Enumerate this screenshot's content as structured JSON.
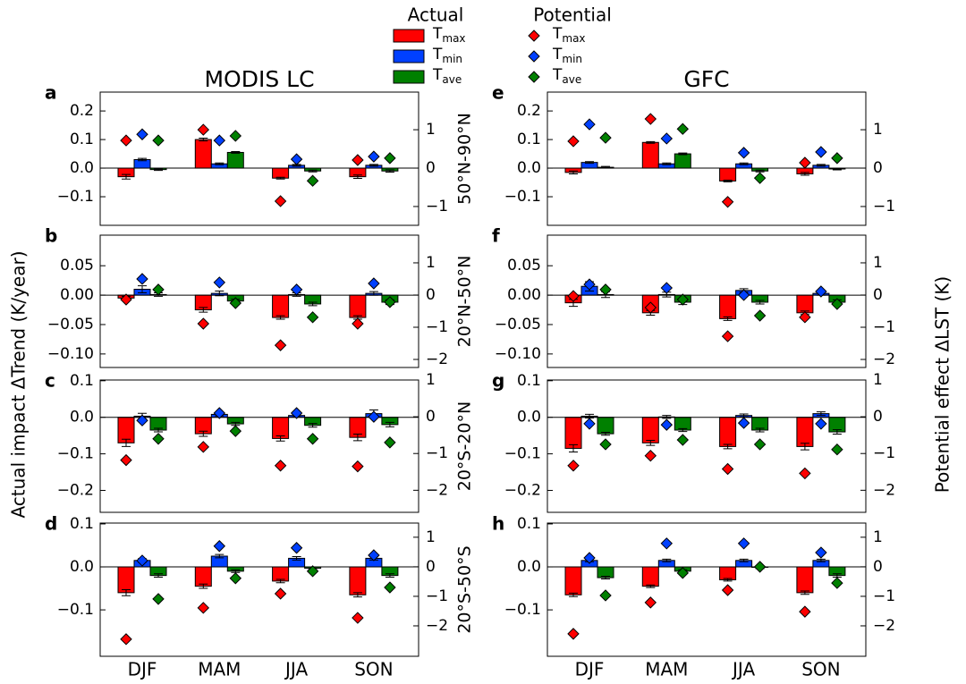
{
  "y_label": "Actual impact ΔTrend (K/year)",
  "y2_label": "Potential effect ΔLST (K)",
  "legend": {
    "actual_title": "Actual",
    "potential_title": "Potential"
  },
  "chart_data": [
    {
      "type": "bar",
      "title": "MODIS LC",
      "panel_label": "a",
      "row_label": "50°N-90°N",
      "ylim": [
        -0.2,
        0.266
      ],
      "yticks": [
        0.2,
        0.1,
        {
          "value": 0,
          "label": "0.0"
        },
        {
          "value": -0.1,
          "label": "−0.1"
        }
      ],
      "y2lim": [
        -1.49,
        1.98
      ],
      "y2ticks": [
        1,
        0,
        {
          "value": -1,
          "label": "−1"
        }
      ],
      "series": [
        {
          "name": "Tmax",
          "color": "#ff0000",
          "values": [
            -0.03,
            0.1,
            -0.035,
            -0.03
          ],
          "errors": [
            0.008,
            0.005,
            0.003,
            0.006
          ]
        },
        {
          "name": "Tmin",
          "color": "#0040ff",
          "values": [
            0.03,
            0.015,
            0.01,
            0.01
          ],
          "errors": [
            0.004,
            0.003,
            0.003,
            0.003
          ]
        },
        {
          "name": "Tave",
          "color": "#008000",
          "values": [
            -0.005,
            0.055,
            -0.01,
            -0.01
          ],
          "errors": [
            0.003,
            0.003,
            0.003,
            0.004
          ]
        }
      ],
      "potential": [
        {
          "name": "Tmax",
          "color": "#ff0000",
          "values": [
            0.72,
            1.0,
            -0.86,
            0.21
          ]
        },
        {
          "name": "Tmin",
          "color": "#0040ff",
          "values": [
            0.88,
            0.72,
            0.23,
            0.3
          ]
        },
        {
          "name": "Tave",
          "color": "#008000",
          "values": [
            0.72,
            0.84,
            -0.33,
            0.26
          ]
        }
      ]
    },
    {
      "type": "bar",
      "panel_label": "b",
      "row_label": "20°N-50°N",
      "ylim": [
        -0.123,
        0.102
      ],
      "yticks": [
        0.05,
        {
          "value": 0,
          "label": "0.00"
        },
        {
          "value": -0.05,
          "label": "−0.05"
        },
        {
          "value": -0.1,
          "label": "−0.10"
        }
      ],
      "y2lim": [
        -2.25,
        1.86
      ],
      "y2ticks": [
        1,
        0,
        {
          "value": -1,
          "label": "−1"
        },
        {
          "value": -2,
          "label": "−2"
        }
      ],
      "series": [
        {
          "name": "Tmax",
          "color": "#ff0000",
          "values": [
            -0.005,
            -0.025,
            -0.038,
            -0.038
          ],
          "errors": [
            0.003,
            0.004,
            0.003,
            0.003
          ]
        },
        {
          "name": "Tmin",
          "color": "#0040ff",
          "values": [
            0.01,
            0.003,
            0.001,
            0.003
          ],
          "errors": [
            0.006,
            0.004,
            0.003,
            0.003
          ]
        },
        {
          "name": "Tave",
          "color": "#008000",
          "values": [
            0.001,
            -0.01,
            -0.015,
            -0.012
          ],
          "errors": [
            0.003,
            0.003,
            0.003,
            0.004
          ]
        }
      ],
      "potential": [
        {
          "name": "Tmax",
          "color": "#ff0000",
          "values": [
            -0.14,
            -0.89,
            -1.56,
            -0.89
          ]
        },
        {
          "name": "Tmin",
          "color": "#0040ff",
          "values": [
            0.5,
            0.39,
            0.17,
            0.36
          ]
        },
        {
          "name": "Tave",
          "color": "#008000",
          "values": [
            0.17,
            -0.25,
            -0.69,
            -0.22
          ]
        }
      ]
    },
    {
      "type": "bar",
      "panel_label": "c",
      "row_label": "20°S-20°N",
      "ylim": [
        -0.26,
        0.102
      ],
      "yticks": [
        0.1,
        {
          "value": 0,
          "label": "0.0"
        },
        {
          "value": -0.1,
          "label": "−0.1"
        },
        {
          "value": -0.2,
          "label": "−0.2"
        }
      ],
      "y2lim": [
        -2.6,
        1.0
      ],
      "y2ticks": [
        1,
        0,
        {
          "value": -1,
          "label": "−1"
        },
        {
          "value": -2,
          "label": "−2"
        }
      ],
      "series": [
        {
          "name": "Tmax",
          "color": "#ff0000",
          "values": [
            -0.07,
            -0.045,
            -0.058,
            -0.055
          ],
          "errors": [
            0.01,
            0.007,
            0.007,
            0.009
          ]
        },
        {
          "name": "Tmin",
          "color": "#0040ff",
          "values": [
            0.003,
            0.008,
            0.005,
            0.01
          ],
          "errors": [
            0.008,
            0.004,
            0.004,
            0.01
          ]
        },
        {
          "name": "Tave",
          "color": "#008000",
          "values": [
            -0.035,
            -0.018,
            -0.022,
            -0.02
          ],
          "errors": [
            0.005,
            0.004,
            0.005,
            0.006
          ]
        }
      ],
      "potential": [
        {
          "name": "Tmax",
          "color": "#ff0000",
          "values": [
            -1.18,
            -0.82,
            -1.33,
            -1.35
          ]
        },
        {
          "name": "Tmin",
          "color": "#0040ff",
          "values": [
            -0.1,
            0.1,
            0.1,
            0
          ]
        },
        {
          "name": "Tave",
          "color": "#008000",
          "values": [
            -0.6,
            -0.39,
            -0.6,
            -0.7
          ]
        }
      ]
    },
    {
      "type": "bar",
      "panel_label": "d",
      "row_label": "20°S-50°S",
      "categories": [
        "DJF",
        "MAM",
        "JJA",
        "SON"
      ],
      "ylim": [
        -0.208,
        0.102
      ],
      "yticks": [
        0.1,
        {
          "value": 0,
          "label": "0.0"
        },
        {
          "value": -0.1,
          "label": "−0.1"
        }
      ],
      "y2lim": [
        -3.03,
        1.48
      ],
      "y2ticks": [
        1,
        0,
        {
          "value": -1,
          "label": "−1"
        },
        {
          "value": -2,
          "label": "−2"
        }
      ],
      "series": [
        {
          "name": "Tmax",
          "color": "#ff0000",
          "values": [
            -0.06,
            -0.045,
            -0.033,
            -0.065
          ],
          "errors": [
            0.007,
            0.005,
            0.004,
            0.005
          ]
        },
        {
          "name": "Tmin",
          "color": "#0040ff",
          "values": [
            0.015,
            0.025,
            0.02,
            0.02
          ],
          "errors": [
            0.004,
            0.004,
            0.004,
            0.004
          ]
        },
        {
          "name": "Tave",
          "color": "#008000",
          "values": [
            -0.02,
            -0.01,
            -0.003,
            -0.02
          ],
          "errors": [
            0.004,
            0.003,
            0.003,
            0.004
          ]
        }
      ],
      "potential": [
        {
          "name": "Tmax",
          "color": "#ff0000",
          "values": [
            -2.45,
            -1.39,
            -0.91,
            -1.73
          ]
        },
        {
          "name": "Tmin",
          "color": "#0040ff",
          "values": [
            0.21,
            0.7,
            0.64,
            0.39
          ]
        },
        {
          "name": "Tave",
          "color": "#008000",
          "values": [
            -1.09,
            -0.39,
            -0.15,
            -0.7
          ]
        }
      ]
    },
    {
      "type": "bar",
      "title": "GFC",
      "panel_label": "e",
      "ylim": [
        -0.2,
        0.266
      ],
      "yticks": [
        0.2,
        0.1,
        {
          "value": 0,
          "label": "0.0"
        },
        {
          "value": -0.1,
          "label": "−0.1"
        }
      ],
      "y2lim": [
        -1.49,
        1.98
      ],
      "y2ticks": [
        1,
        0,
        {
          "value": -1,
          "label": "−1"
        }
      ],
      "series": [
        {
          "name": "Tmax",
          "color": "#ff0000",
          "values": [
            -0.015,
            0.09,
            -0.045,
            -0.02
          ],
          "errors": [
            0.005,
            0.003,
            0.003,
            0.005
          ]
        },
        {
          "name": "Tmin",
          "color": "#0040ff",
          "values": [
            0.02,
            0.015,
            0.015,
            0.01
          ],
          "errors": [
            0.003,
            0.003,
            0.003,
            0.003
          ]
        },
        {
          "name": "Tave",
          "color": "#008000",
          "values": [
            0.003,
            0.05,
            -0.01,
            -0.003
          ],
          "errors": [
            0.003,
            0.003,
            0.003,
            0.003
          ]
        }
      ],
      "potential": [
        {
          "name": "Tmax",
          "color": "#ff0000",
          "values": [
            0.7,
            1.28,
            -0.88,
            0.14
          ]
        },
        {
          "name": "Tmin",
          "color": "#0040ff",
          "values": [
            1.14,
            0.77,
            0.4,
            0.42
          ]
        },
        {
          "name": "Tave",
          "color": "#008000",
          "values": [
            0.79,
            1.02,
            -0.26,
            0.26
          ]
        }
      ]
    },
    {
      "type": "bar",
      "panel_label": "f",
      "ylim": [
        -0.123,
        0.102
      ],
      "yticks": [
        0.05,
        {
          "value": 0,
          "label": "0.00"
        },
        {
          "value": -0.05,
          "label": "−0.05"
        },
        {
          "value": -0.1,
          "label": "−0.10"
        }
      ],
      "y2lim": [
        -2.25,
        1.86
      ],
      "y2ticks": [
        1,
        0,
        {
          "value": -1,
          "label": "−1"
        },
        {
          "value": -2,
          "label": "−2"
        }
      ],
      "series": [
        {
          "name": "Tmax",
          "color": "#ff0000",
          "values": [
            -0.013,
            -0.03,
            -0.04,
            -0.03
          ],
          "errors": [
            0.006,
            0.004,
            0.003,
            0.003
          ]
        },
        {
          "name": "Tmin",
          "color": "#0040ff",
          "values": [
            0.015,
            0.001,
            0.008,
            0.003
          ],
          "errors": [
            0.008,
            0.004,
            0.003,
            0.003
          ]
        },
        {
          "name": "Tave",
          "color": "#008000",
          "values": [
            0.001,
            -0.012,
            -0.012,
            -0.012
          ],
          "errors": [
            0.005,
            0.004,
            0.003,
            0.004
          ]
        }
      ],
      "potential": [
        {
          "name": "Tmax",
          "color": "#ff0000",
          "values": [
            -0.03,
            -0.39,
            -1.28,
            -0.69
          ]
        },
        {
          "name": "Tmin",
          "color": "#0040ff",
          "values": [
            0.33,
            0.22,
            0,
            0.11
          ]
        },
        {
          "name": "Tave",
          "color": "#008000",
          "values": [
            0.17,
            -0.14,
            -0.64,
            -0.28
          ]
        }
      ]
    },
    {
      "type": "bar",
      "panel_label": "g",
      "ylim": [
        -0.26,
        0.102
      ],
      "yticks": [
        0.1,
        {
          "value": 0,
          "label": "0.0"
        },
        {
          "value": -0.1,
          "label": "−0.1"
        },
        {
          "value": -0.2,
          "label": "−0.2"
        }
      ],
      "y2lim": [
        -2.6,
        1.0
      ],
      "y2ticks": [
        1,
        0,
        {
          "value": -1,
          "label": "−1"
        },
        {
          "value": -2,
          "label": "−2"
        }
      ],
      "series": [
        {
          "name": "Tmax",
          "color": "#ff0000",
          "values": [
            -0.085,
            -0.07,
            -0.08,
            -0.08
          ],
          "errors": [
            0.01,
            0.007,
            0.006,
            0.009
          ]
        },
        {
          "name": "Tmin",
          "color": "#0040ff",
          "values": [
            0.003,
            0.001,
            0.005,
            0.01
          ],
          "errors": [
            0.005,
            0.004,
            0.004,
            0.005
          ]
        },
        {
          "name": "Tave",
          "color": "#008000",
          "values": [
            -0.045,
            -0.035,
            -0.035,
            -0.04
          ],
          "errors": [
            0.004,
            0.004,
            0.005,
            0.006
          ]
        }
      ],
      "potential": [
        {
          "name": "Tmax",
          "color": "#ff0000",
          "values": [
            -1.33,
            -1.06,
            -1.42,
            -1.54
          ]
        },
        {
          "name": "Tmin",
          "color": "#0040ff",
          "values": [
            -0.19,
            -0.22,
            -0.17,
            -0.19
          ]
        },
        {
          "name": "Tave",
          "color": "#008000",
          "values": [
            -0.75,
            -0.63,
            -0.75,
            -0.89
          ]
        }
      ]
    },
    {
      "type": "bar",
      "panel_label": "h",
      "categories": [
        "DJF",
        "MAM",
        "JJA",
        "SON"
      ],
      "ylim": [
        -0.208,
        0.102
      ],
      "yticks": [
        0.1,
        {
          "value": 0,
          "label": "0.0"
        },
        {
          "value": -0.1,
          "label": "−0.1"
        }
      ],
      "y2lim": [
        -3.03,
        1.48
      ],
      "y2ticks": [
        1,
        0,
        {
          "value": -1,
          "label": "−1"
        },
        {
          "value": -2,
          "label": "−2"
        }
      ],
      "series": [
        {
          "name": "Tmax",
          "color": "#ff0000",
          "values": [
            -0.065,
            -0.045,
            -0.03,
            -0.06
          ],
          "errors": [
            0.004,
            0.003,
            0.003,
            0.004
          ]
        },
        {
          "name": "Tmin",
          "color": "#0040ff",
          "values": [
            0.015,
            0.015,
            0.015,
            0.015
          ],
          "errors": [
            0.003,
            0.003,
            0.003,
            0.003
          ]
        },
        {
          "name": "Tave",
          "color": "#008000",
          "values": [
            -0.025,
            -0.01,
            -0.001,
            -0.02
          ],
          "errors": [
            0.003,
            0.003,
            0.003,
            0.004
          ]
        }
      ],
      "potential": [
        {
          "name": "Tmax",
          "color": "#ff0000",
          "values": [
            -2.27,
            -1.21,
            -0.79,
            -1.52
          ]
        },
        {
          "name": "Tmin",
          "color": "#0040ff",
          "values": [
            0.3,
            0.79,
            0.79,
            0.48
          ]
        },
        {
          "name": "Tave",
          "color": "#008000",
          "values": [
            -0.97,
            -0.21,
            0,
            -0.55
          ]
        }
      ]
    }
  ]
}
